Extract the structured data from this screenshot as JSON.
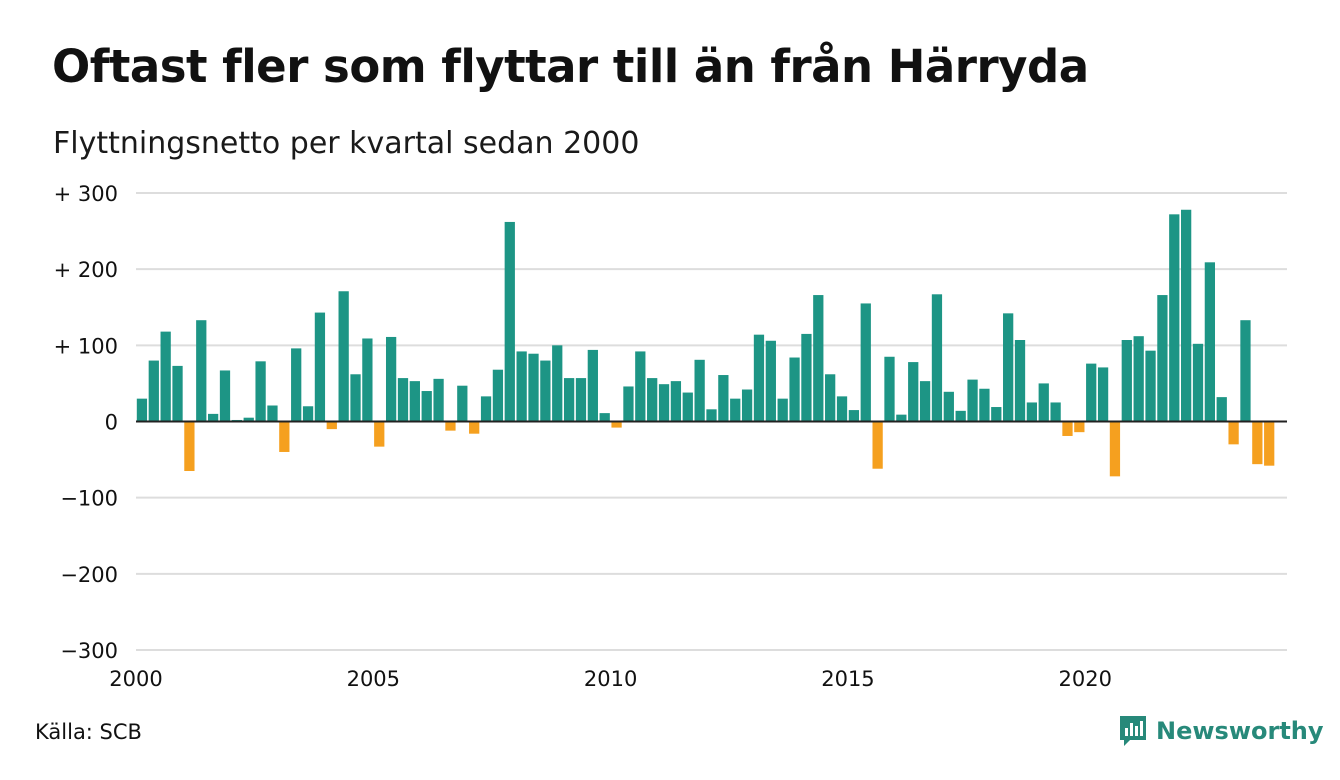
{
  "title": "Oftast fler som flyttar till än från Härryda",
  "subtitle": "Flyttningsnetto per kvartal sedan 2000",
  "source": "Källa: SCB",
  "brand": {
    "name": "Newsworthy",
    "icon": "newsworthy-logo-icon"
  },
  "colors": {
    "positive": "#1d9585",
    "negative": "#f5a01f",
    "grid": "#dddddd",
    "baseline": "#222222",
    "brand": "#27897a"
  },
  "chart_data": {
    "type": "bar",
    "x_start": 2000,
    "x_step": 0.25,
    "xlim": [
      2000,
      2024.25
    ],
    "ylim": [
      -300,
      300
    ],
    "grid": true,
    "y_ticks": [
      {
        "value": 300,
        "label": "+ 300"
      },
      {
        "value": 200,
        "label": "+ 200"
      },
      {
        "value": 100,
        "label": "+ 100"
      },
      {
        "value": 0,
        "label": "0"
      },
      {
        "value": -100,
        "label": "−100"
      },
      {
        "value": -200,
        "label": "−200"
      },
      {
        "value": -300,
        "label": "−300"
      }
    ],
    "x_ticks": [
      {
        "value": 2000,
        "label": "2000"
      },
      {
        "value": 2005,
        "label": "2005"
      },
      {
        "value": 2010,
        "label": "2010"
      },
      {
        "value": 2015,
        "label": "2015"
      },
      {
        "value": 2020,
        "label": "2020"
      }
    ],
    "values": [
      30,
      80,
      118,
      73,
      -65,
      133,
      10,
      67,
      2,
      5,
      79,
      21,
      -40,
      96,
      20,
      143,
      -10,
      171,
      62,
      109,
      -33,
      111,
      57,
      53,
      40,
      56,
      -12,
      47,
      -16,
      33,
      68,
      262,
      92,
      89,
      80,
      100,
      57,
      57,
      94,
      11,
      -8,
      46,
      92,
      57,
      49,
      53,
      38,
      81,
      16,
      61,
      30,
      42,
      114,
      106,
      30,
      84,
      115,
      166,
      62,
      33,
      15,
      155,
      -62,
      85,
      9,
      78,
      53,
      167,
      39,
      14,
      55,
      43,
      19,
      142,
      107,
      25,
      50,
      25,
      -19,
      -14,
      76,
      71,
      -72,
      107,
      112,
      93,
      166,
      272,
      278,
      102,
      209,
      32,
      -30,
      133,
      -56,
      -58
    ]
  }
}
